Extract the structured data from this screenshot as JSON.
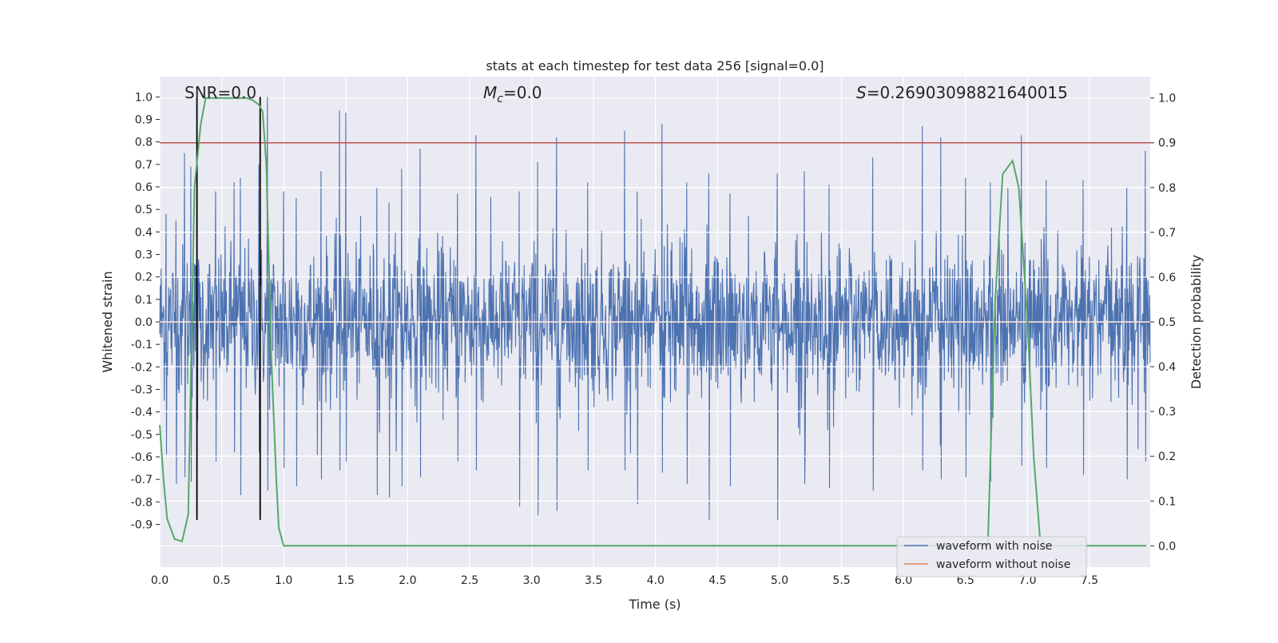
{
  "chart_data": {
    "type": "line",
    "title": "stats at each timestep for test data 256 [signal=0.0]",
    "xlabel": "Time (s)",
    "ylabel": "Whitened strain",
    "y2label": "Detection probability",
    "xlim": [
      0.0,
      7.99
    ],
    "ylim": [
      -1.09,
      1.09
    ],
    "y2lim": [
      -0.0476,
      1.0476
    ],
    "xticks": [
      0.0,
      0.5,
      1.0,
      1.5,
      2.0,
      2.5,
      3.0,
      3.5,
      4.0,
      4.5,
      5.0,
      5.5,
      6.0,
      6.5,
      7.0,
      7.5
    ],
    "xtick_labels": [
      "0.0",
      "0.5",
      "1.0",
      "1.5",
      "2.0",
      "2.5",
      "3.0",
      "3.5",
      "4.0",
      "4.5",
      "5.0",
      "5.5",
      "6.0",
      "6.5",
      "7.0",
      "7.5"
    ],
    "yticks": [
      1.0,
      0.9,
      0.8,
      0.7,
      0.6,
      0.5,
      0.4,
      0.3,
      0.2,
      0.1,
      0.0,
      -0.1,
      -0.2,
      -0.3,
      -0.4,
      -0.5,
      -0.6,
      -0.7,
      -0.8,
      -0.9
    ],
    "ytick_labels": [
      "1.0",
      "0.9",
      "0.8",
      "0.7",
      "0.6",
      "0.5",
      "0.4",
      "0.3",
      "0.2",
      "0.1",
      "0.0",
      "-0.1",
      "-0.2",
      "-0.3",
      "-0.4",
      "-0.5",
      "-0.6",
      "-0.7",
      "-0.8",
      "-0.9"
    ],
    "y2ticks": [
      1.0,
      0.9,
      0.8,
      0.7,
      0.6,
      0.5,
      0.4,
      0.3,
      0.2,
      0.1,
      0.0
    ],
    "y2tick_labels": [
      "1.0",
      "0.9",
      "0.8",
      "0.7",
      "0.6",
      "0.5",
      "0.4",
      "0.3",
      "0.2",
      "0.1",
      "0.0"
    ],
    "grid": true,
    "legend_position": "bottom-right",
    "series": [
      {
        "name": "waveform with noise",
        "axis": "left",
        "color": "#4c72b0",
        "note": "dense noise trace",
        "envelope_peaks": [
          [
            0.05,
            0.48,
            -0.59
          ],
          [
            0.13,
            0.45,
            -0.72
          ],
          [
            0.2,
            0.75,
            -0.69
          ],
          [
            0.25,
            0.69,
            -0.71
          ],
          [
            0.3,
            0.7,
            -0.44
          ],
          [
            0.45,
            0.58,
            -0.62
          ],
          [
            0.6,
            0.62,
            -0.58
          ],
          [
            0.65,
            0.64,
            -0.77
          ],
          [
            0.8,
            0.7,
            -0.58
          ],
          [
            0.87,
            1.0,
            -0.75
          ],
          [
            1.0,
            0.58,
            -0.65
          ],
          [
            1.1,
            0.55,
            -0.73
          ],
          [
            1.3,
            0.67,
            -0.7
          ],
          [
            1.45,
            0.94,
            -0.66
          ],
          [
            1.5,
            0.93,
            -0.62
          ],
          [
            1.75,
            0.6,
            -0.77
          ],
          [
            1.85,
            0.53,
            -0.78
          ],
          [
            1.95,
            0.68,
            -0.73
          ],
          [
            2.1,
            0.77,
            -0.69
          ],
          [
            2.4,
            0.57,
            -0.62
          ],
          [
            2.55,
            0.83,
            -0.66
          ],
          [
            2.9,
            0.58,
            -0.82
          ],
          [
            3.05,
            0.71,
            -0.86
          ],
          [
            3.2,
            0.82,
            -0.84
          ],
          [
            3.45,
            0.62,
            -0.66
          ],
          [
            3.75,
            0.85,
            -0.66
          ],
          [
            3.85,
            0.58,
            -0.81
          ],
          [
            4.05,
            0.88,
            -0.67
          ],
          [
            4.25,
            0.62,
            -0.72
          ],
          [
            4.43,
            0.66,
            -0.88
          ],
          [
            4.6,
            0.57,
            -0.73
          ],
          [
            4.98,
            0.66,
            -0.88
          ],
          [
            5.2,
            0.67,
            -0.72
          ],
          [
            5.4,
            0.61,
            -0.74
          ],
          [
            5.75,
            0.73,
            -0.75
          ],
          [
            6.15,
            0.87,
            -0.66
          ],
          [
            6.3,
            0.82,
            -0.7
          ],
          [
            6.5,
            0.64,
            -0.69
          ],
          [
            6.7,
            0.62,
            -0.71
          ],
          [
            6.95,
            0.83,
            -0.64
          ],
          [
            7.15,
            0.63,
            -0.65
          ],
          [
            7.45,
            0.63,
            -0.68
          ],
          [
            7.8,
            0.6,
            -0.7
          ],
          [
            7.95,
            0.76,
            -0.62
          ]
        ]
      },
      {
        "name": "waveform without noise",
        "axis": "left",
        "color": "#dd8452",
        "x": [
          0.0,
          7.99
        ],
        "y": [
          0.0,
          0.0
        ]
      },
      {
        "name": "Detection probability",
        "axis": "right",
        "color": "#55a868",
        "x": [
          0.0,
          0.03,
          0.06,
          0.12,
          0.18,
          0.23,
          0.28,
          0.33,
          0.37,
          0.42,
          0.5,
          0.6,
          0.7,
          0.75,
          0.8,
          0.83,
          0.86,
          0.9,
          0.94,
          0.96,
          1.0,
          1.05,
          1.5,
          2.0,
          3.0,
          4.0,
          5.0,
          6.0,
          6.5,
          6.6,
          6.68,
          6.74,
          6.8,
          6.88,
          6.93,
          7.0,
          7.05,
          7.1,
          7.15,
          7.2,
          7.4,
          7.6,
          7.8,
          7.96
        ],
        "y": [
          0.27,
          0.15,
          0.06,
          0.015,
          0.01,
          0.07,
          0.8,
          0.94,
          1.0,
          1.0,
          1.0,
          1.0,
          1.0,
          0.995,
          0.985,
          0.97,
          0.85,
          0.42,
          0.15,
          0.04,
          0.0,
          0.0,
          0.0,
          0.0,
          0.0,
          0.0,
          0.0,
          0.0,
          0.0,
          0.0,
          0.0,
          0.55,
          0.83,
          0.86,
          0.8,
          0.5,
          0.2,
          0.02,
          0.0,
          0.0,
          0.0,
          0.0,
          0.0,
          0.0
        ]
      }
    ],
    "hlines": [
      {
        "name": "threshold",
        "axis": "right",
        "value": 0.9,
        "color": "#c44e52"
      }
    ],
    "vlines": [
      {
        "name": "detection-window-start",
        "x": 0.3,
        "color": "#000000"
      },
      {
        "name": "detection-window-end",
        "x": 0.81,
        "color": "#000000"
      }
    ],
    "annotations": [
      {
        "name": "snr",
        "text": "SNR=0.0"
      },
      {
        "name": "chirp-mass",
        "symbol": "M",
        "subscript": "c",
        "text": "=0.0"
      },
      {
        "name": "statistic",
        "symbol": "S",
        "text": "=0.26903098821640015"
      }
    ],
    "legend": [
      "waveform with noise",
      "waveform without noise"
    ]
  }
}
